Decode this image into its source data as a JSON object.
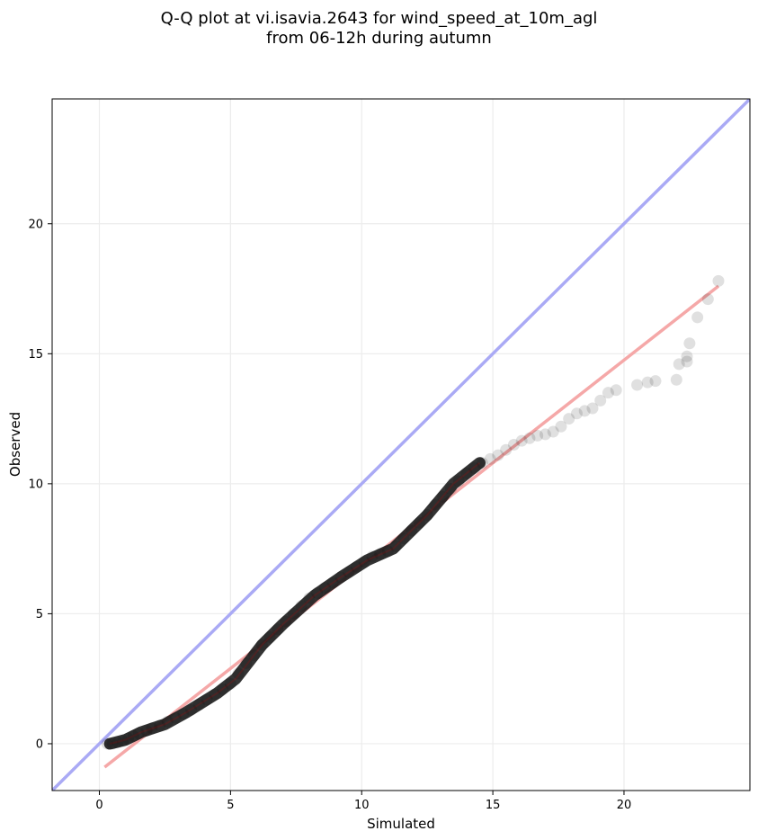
{
  "chart_data": {
    "type": "scatter",
    "title": "Q-Q plot at vi.isavia.2643 for wind_speed_at_10m_agl",
    "subtitle": "from 06-12h during autumn",
    "xlabel": "Simulated",
    "ylabel": "Observed",
    "xlim": [
      -1.8,
      24.8
    ],
    "ylim": [
      -1.8,
      24.8
    ],
    "xticks": [
      0,
      5,
      10,
      15,
      20
    ],
    "yticks": [
      0,
      5,
      10,
      15,
      20
    ],
    "x_tick_labels": [
      "0",
      "5",
      "10",
      "15",
      "20"
    ],
    "y_tick_labels": [
      "0",
      "5",
      "10",
      "15",
      "20"
    ],
    "grid": true,
    "identity_line": {
      "from": [
        -1.8,
        -1.8
      ],
      "to": [
        24.8,
        24.8
      ],
      "color": "#aaaaf5"
    },
    "fit_line": {
      "from": [
        0.2,
        -0.9
      ],
      "to": [
        23.6,
        17.6
      ],
      "color": "#f5a8a8"
    },
    "dense_segments": [
      [
        [
          0.4,
          0.0
        ],
        [
          1.0,
          0.15
        ],
        [
          1.6,
          0.45
        ],
        [
          2.5,
          0.75
        ],
        [
          3.3,
          1.2
        ],
        [
          4.5,
          1.95
        ],
        [
          5.2,
          2.5
        ],
        [
          6.2,
          3.8
        ],
        [
          7.0,
          4.6
        ],
        [
          8.2,
          5.7
        ],
        [
          9.2,
          6.4
        ],
        [
          10.2,
          7.05
        ],
        [
          11.2,
          7.5
        ],
        [
          12.5,
          8.8
        ],
        [
          13.5,
          10.0
        ],
        [
          14.5,
          10.8
        ]
      ]
    ],
    "series": [
      {
        "points": [
          [
            0.3,
            0.0
          ],
          [
            0.5,
            0.0
          ],
          [
            0.7,
            0.05
          ],
          [
            0.9,
            0.1
          ],
          [
            1.1,
            0.2
          ],
          [
            1.3,
            0.3
          ],
          [
            1.5,
            0.4
          ],
          [
            1.8,
            0.5
          ],
          [
            2.0,
            0.6
          ],
          [
            2.3,
            0.7
          ],
          [
            2.6,
            0.85
          ],
          [
            2.9,
            1.0
          ],
          [
            3.2,
            1.15
          ],
          [
            3.5,
            1.3
          ],
          [
            3.8,
            1.5
          ],
          [
            4.1,
            1.7
          ],
          [
            4.4,
            1.9
          ],
          [
            4.7,
            2.1
          ],
          [
            5.0,
            2.3
          ],
          [
            5.3,
            2.7
          ],
          [
            5.6,
            3.1
          ],
          [
            5.9,
            3.4
          ],
          [
            6.2,
            3.8
          ],
          [
            6.5,
            4.1
          ],
          [
            6.8,
            4.4
          ],
          [
            7.1,
            4.7
          ],
          [
            7.4,
            5.0
          ],
          [
            7.7,
            5.3
          ],
          [
            8.0,
            5.6
          ],
          [
            8.3,
            5.8
          ],
          [
            8.6,
            6.0
          ],
          [
            8.9,
            6.2
          ],
          [
            9.2,
            6.4
          ],
          [
            9.5,
            6.6
          ],
          [
            9.8,
            6.8
          ],
          [
            10.1,
            7.0
          ],
          [
            10.4,
            7.2
          ],
          [
            10.7,
            7.3
          ],
          [
            11.0,
            7.4
          ],
          [
            11.3,
            7.6
          ],
          [
            11.6,
            7.9
          ],
          [
            11.9,
            8.2
          ],
          [
            12.2,
            8.5
          ],
          [
            12.5,
            8.8
          ],
          [
            12.8,
            9.2
          ],
          [
            13.1,
            9.5
          ],
          [
            13.4,
            9.8
          ],
          [
            13.7,
            10.1
          ],
          [
            14.0,
            10.4
          ],
          [
            14.3,
            10.6
          ],
          [
            14.6,
            10.8
          ],
          [
            14.9,
            10.95
          ],
          [
            15.2,
            11.1
          ],
          [
            15.5,
            11.3
          ],
          [
            15.8,
            11.5
          ],
          [
            16.1,
            11.65
          ],
          [
            16.4,
            11.75
          ],
          [
            16.7,
            11.85
          ],
          [
            17.0,
            11.9
          ],
          [
            17.3,
            12.0
          ],
          [
            17.6,
            12.2
          ],
          [
            17.9,
            12.5
          ],
          [
            18.2,
            12.7
          ],
          [
            18.5,
            12.8
          ],
          [
            18.8,
            12.9
          ],
          [
            19.1,
            13.2
          ],
          [
            19.4,
            13.5
          ],
          [
            19.7,
            13.6
          ],
          [
            20.5,
            13.8
          ],
          [
            20.9,
            13.9
          ],
          [
            21.2,
            13.95
          ],
          [
            22.0,
            14.0
          ],
          [
            22.1,
            14.6
          ],
          [
            22.4,
            14.7
          ],
          [
            22.4,
            14.9
          ],
          [
            22.5,
            15.4
          ],
          [
            22.8,
            16.4
          ],
          [
            23.2,
            17.1
          ],
          [
            23.6,
            17.8
          ]
        ]
      }
    ]
  }
}
